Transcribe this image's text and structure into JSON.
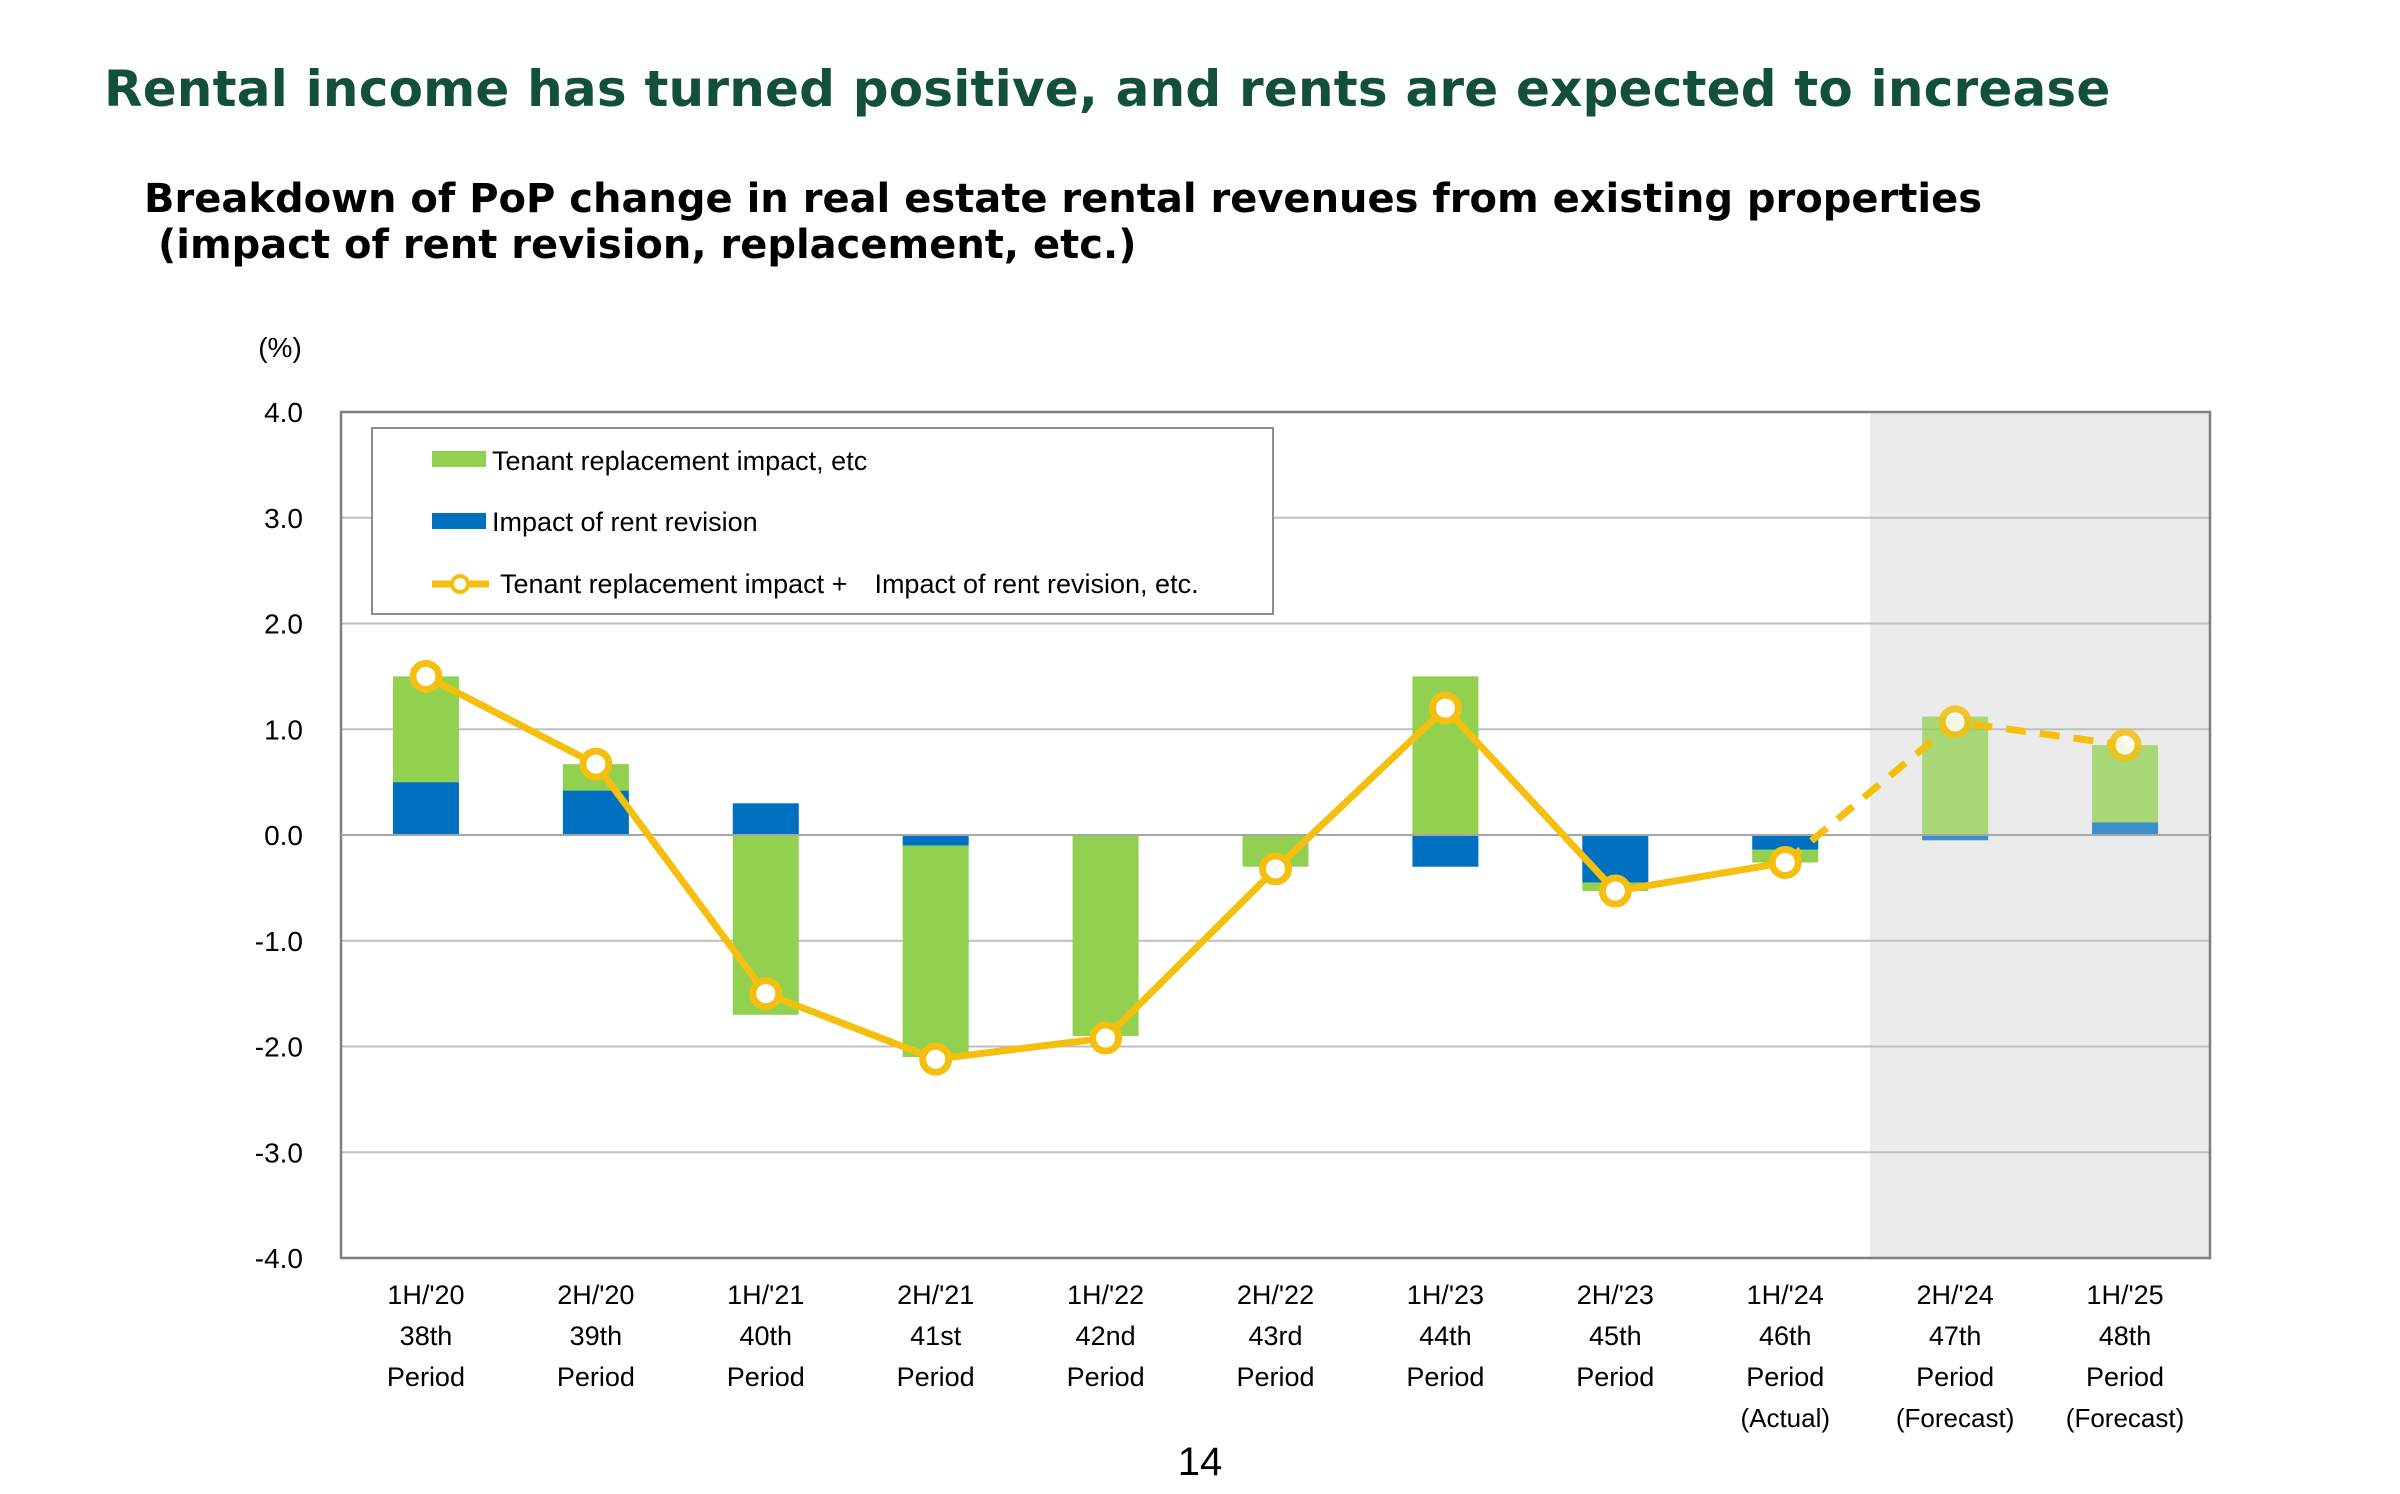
{
  "page": {
    "title": "Rental income has turned positive, and rents are expected to increase",
    "page_number": "14"
  },
  "chart_data": {
    "type": "bar",
    "stacked": true,
    "title_line1": "Breakdown of PoP change in real estate rental revenues from existing properties",
    "title_line2": "(impact of rent revision, replacement, etc.)",
    "unit_label": "(%)",
    "ylim": [
      -4.0,
      4.0
    ],
    "yticks": [
      "4.0",
      "3.0",
      "2.0",
      "1.0",
      "0.0",
      "-1.0",
      "-2.0",
      "-3.0",
      "-4.0"
    ],
    "grid": true,
    "legend_position": "top-left",
    "forecast_shaded_from_index": 9,
    "categories": [
      {
        "period": "1H/'20",
        "number": "38th",
        "label": "Period",
        "note": ""
      },
      {
        "period": "2H/'20",
        "number": "39th",
        "label": "Period",
        "note": ""
      },
      {
        "period": "1H/'21",
        "number": "40th",
        "label": "Period",
        "note": ""
      },
      {
        "period": "2H/'21",
        "number": "41st",
        "label": "Period",
        "note": ""
      },
      {
        "period": "1H/'22",
        "number": "42nd",
        "label": "Period",
        "note": ""
      },
      {
        "period": "2H/'22",
        "number": "43rd",
        "label": "Period",
        "note": ""
      },
      {
        "period": "1H/'23",
        "number": "44th",
        "label": "Period",
        "note": ""
      },
      {
        "period": "2H/'23",
        "number": "45th",
        "label": "Period",
        "note": ""
      },
      {
        "period": "1H/'24",
        "number": "46th",
        "label": "Period",
        "note": "(Actual)"
      },
      {
        "period": "2H/'24",
        "number": "47th",
        "label": "Period",
        "note": "(Forecast)"
      },
      {
        "period": "1H/'25",
        "number": "48th",
        "label": "Period",
        "note": "(Forecast)"
      }
    ],
    "series": [
      {
        "name": "Tenant replacement impact, etc",
        "kind": "bar",
        "color": "#92d050",
        "values": [
          1.0,
          0.25,
          -1.7,
          -2.0,
          -1.9,
          -0.3,
          1.5,
          -0.08,
          -0.12,
          1.12,
          0.73
        ]
      },
      {
        "name": "Impact of rent revision",
        "kind": "bar",
        "color": "#0070c0",
        "values": [
          0.5,
          0.42,
          0.3,
          -0.1,
          0.0,
          0.0,
          -0.3,
          -0.45,
          -0.14,
          -0.05,
          0.12
        ]
      },
      {
        "name": "Tenant replacement impact +　Impact of rent revision, etc.",
        "kind": "line",
        "color": "#f5bf0f",
        "values": [
          1.5,
          0.67,
          -1.5,
          -2.12,
          -1.92,
          -0.32,
          1.2,
          -0.53,
          -0.26,
          1.07,
          0.85
        ],
        "dashed_from_index": 8
      }
    ]
  }
}
